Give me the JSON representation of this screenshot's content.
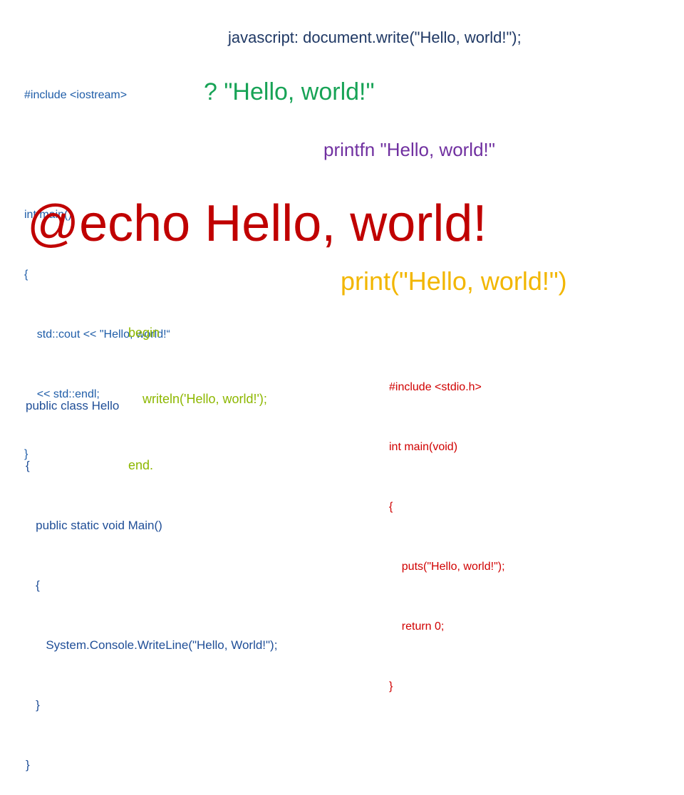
{
  "slide": {
    "cpp": {
      "lines": [
        "#include <iostream>",
        "",
        "int main()",
        "{",
        "    std::cout << \"Hello, world!“",
        "    << std::endl;",
        "}"
      ]
    },
    "javascript": "javascript: document.write(\"Hello, world!\");",
    "basic": "? \"Hello, world!\"",
    "fsharp": "printfn \"Hello, world!\"",
    "batch": "@echo Hello, world!",
    "python": "print(\"Hello, world!\")",
    "pascal": {
      "lines": [
        "begin",
        "    writeln('Hello, world!');",
        "end."
      ]
    },
    "csharp": {
      "lines": [
        "public class Hello",
        "{",
        "   public static void Main()",
        "   {",
        "      System.Console.WriteLine(\"Hello, World!\");",
        "   }",
        "}"
      ]
    },
    "c": {
      "lines": [
        "#include <stdio.h>",
        "int main(void)",
        "{",
        "    puts(\"Hello, world!\");",
        "    return 0;",
        "}"
      ]
    }
  },
  "colors": {
    "cpp": "#1F5DA8",
    "javascript": "#1F3864",
    "basic": "#17A356",
    "fsharp": "#7030A0",
    "batch": "#C00000",
    "python": "#F2B600",
    "pascal": "#8DB700",
    "csharp": "#1F4E97",
    "c": "#D00000"
  }
}
